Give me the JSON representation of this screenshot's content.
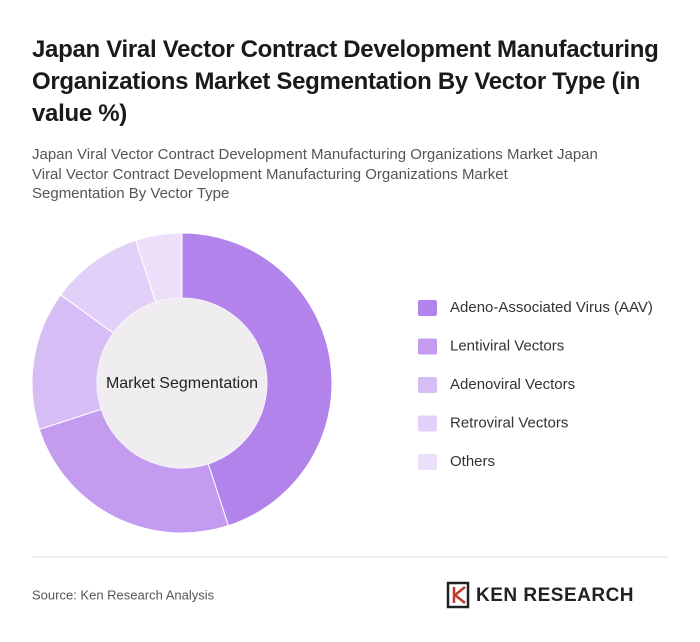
{
  "chart_data": {
    "type": "donut",
    "title": "Japan Viral Vector Contract Development Manufacturing Organizations Market Segmentation By Vector Type (in value %)",
    "subtitle": "Japan Viral Vector Contract Development Manufacturing Organizations Market Japan Viral Vector Contract Development Manufacturing Organizations Market Segmentation By Vector Type",
    "center_label": "Market Segmentation",
    "categories": [
      "Adeno-Associated Virus (AAV)",
      "Lentiviral Vectors",
      "Adenoviral Vectors",
      "Retroviral Vectors",
      "Others"
    ],
    "values": [
      45,
      25,
      15,
      10,
      5
    ],
    "colors": [
      "#b383ec",
      "#c39cf0",
      "#d6bdf5",
      "#e2d0f8",
      "#ebdffa"
    ]
  },
  "footer": {
    "source": "Source: Ken Research Analysis",
    "brand": "KEN RESEARCH"
  }
}
